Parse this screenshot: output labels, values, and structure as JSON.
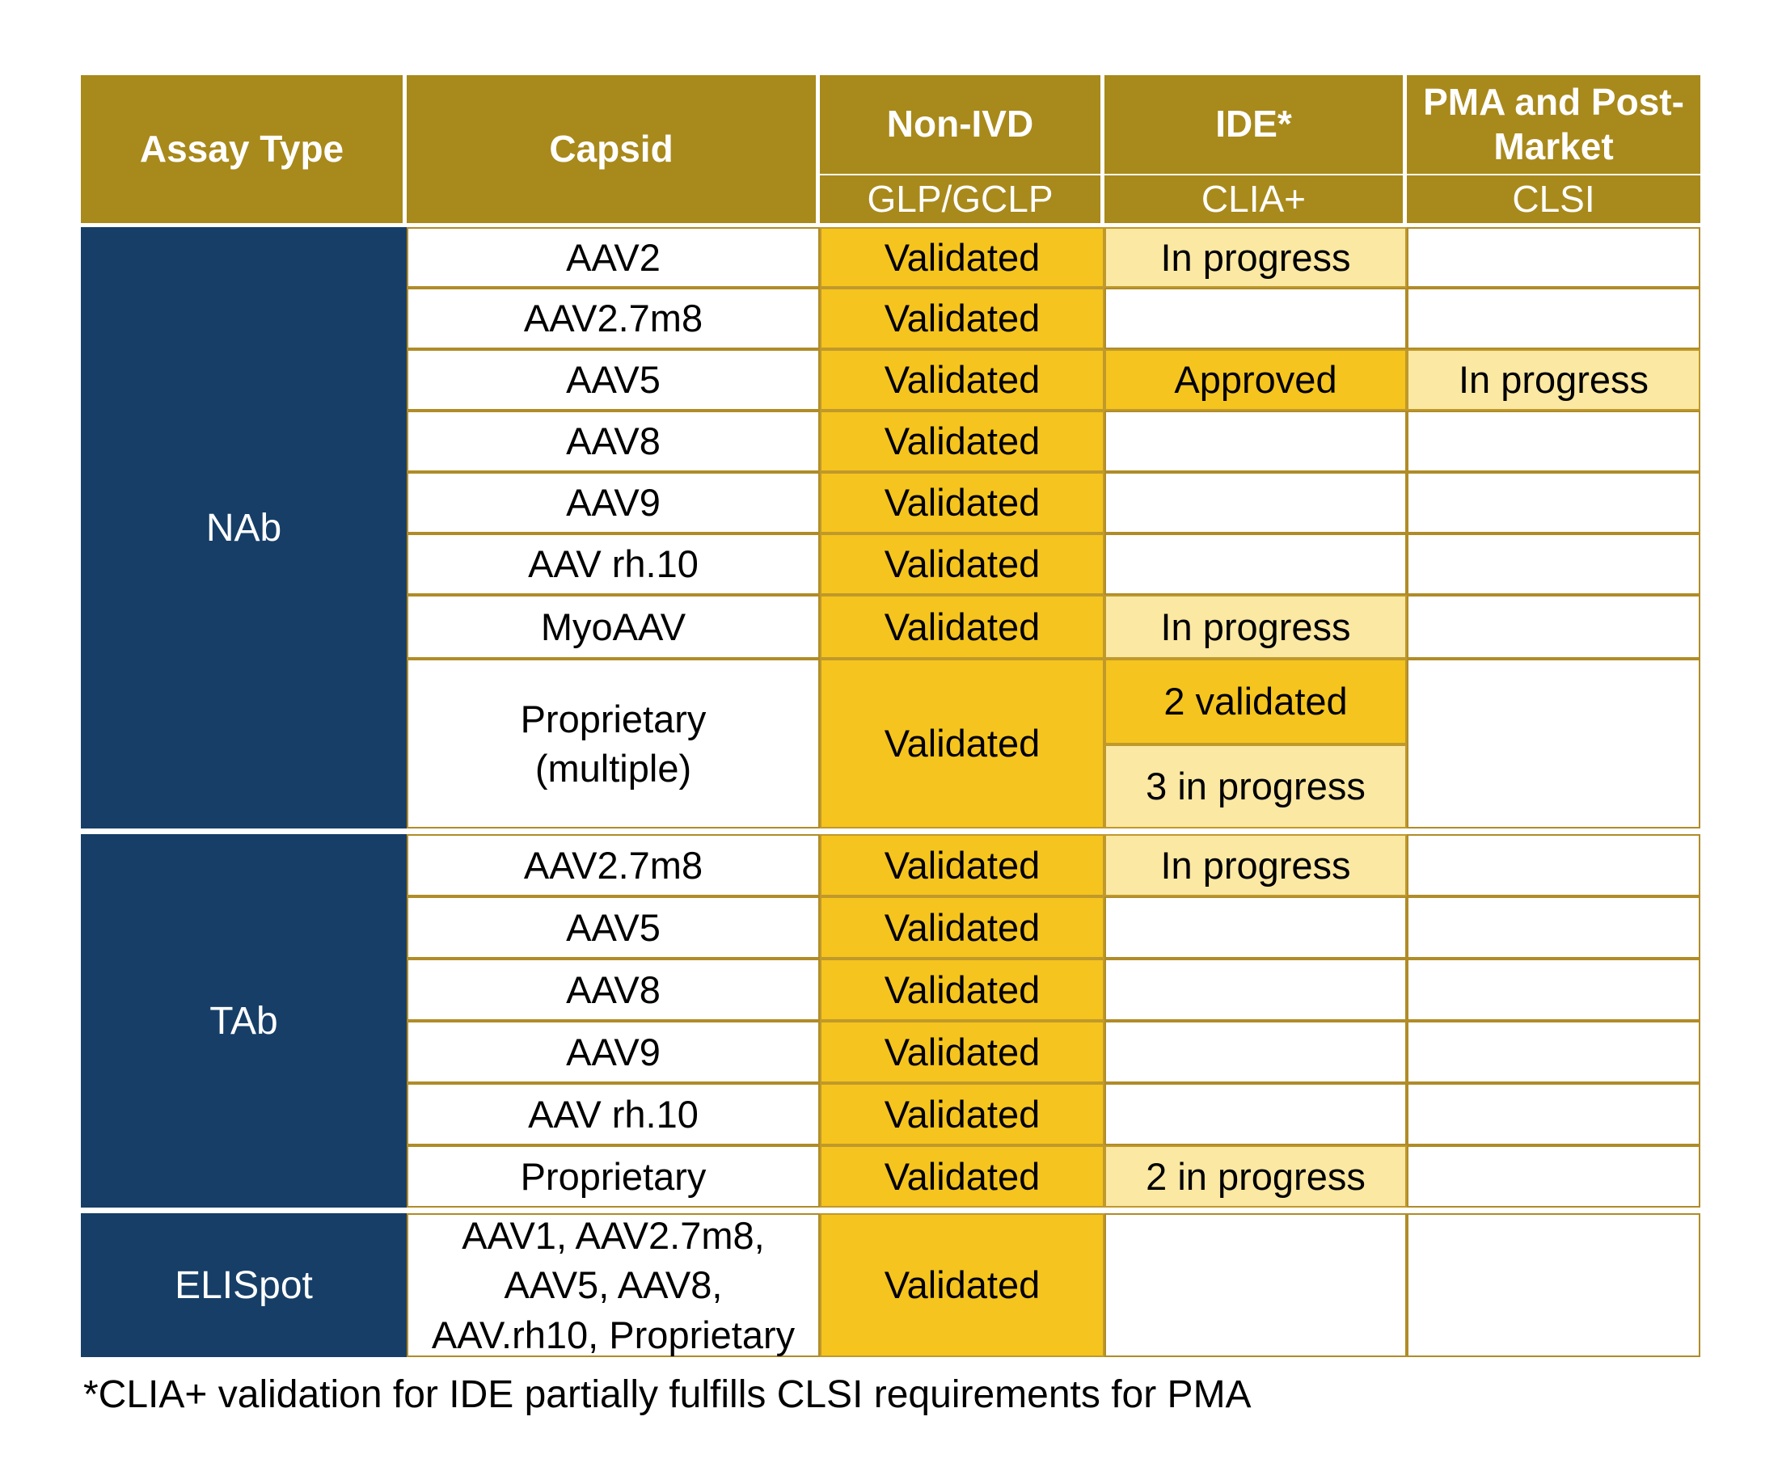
{
  "table": {
    "header": {
      "assay_type": "Assay Type",
      "capsid": "Capsid",
      "columns": [
        {
          "title": "Non-IVD",
          "subtitle": "GLP/GCLP"
        },
        {
          "title": "IDE*",
          "subtitle": "CLIA+"
        },
        {
          "title": "PMA and Post-Market",
          "subtitle": "CLSI"
        }
      ]
    },
    "sections": [
      {
        "assay": "NAb",
        "rows": [
          {
            "capsid": "AAV2",
            "non_ivd": "Validated",
            "ide": "In progress",
            "pma": ""
          },
          {
            "capsid": "AAV2.7m8",
            "non_ivd": "Validated",
            "ide": "",
            "pma": ""
          },
          {
            "capsid": "AAV5",
            "non_ivd": "Validated",
            "ide": "Approved",
            "pma": "In progress"
          },
          {
            "capsid": "AAV8",
            "non_ivd": "Validated",
            "ide": "",
            "pma": ""
          },
          {
            "capsid": "AAV9",
            "non_ivd": "Validated",
            "ide": "",
            "pma": ""
          },
          {
            "capsid": "AAV rh.10",
            "non_ivd": "Validated",
            "ide": "",
            "pma": ""
          },
          {
            "capsid": "MyoAAV",
            "non_ivd": "Validated",
            "ide": "In progress",
            "pma": ""
          },
          {
            "capsid": "Proprietary (multiple)",
            "capsid_lines": [
              "Proprietary",
              "(multiple)"
            ],
            "non_ivd": "Validated",
            "ide_split": [
              "2 validated",
              "3 in progress"
            ],
            "pma": ""
          }
        ]
      },
      {
        "assay": "TAb",
        "rows": [
          {
            "capsid": "AAV2.7m8",
            "non_ivd": "Validated",
            "ide": "In progress",
            "pma": ""
          },
          {
            "capsid": "AAV5",
            "non_ivd": "Validated",
            "ide": "",
            "pma": ""
          },
          {
            "capsid": "AAV8",
            "non_ivd": "Validated",
            "ide": "",
            "pma": ""
          },
          {
            "capsid": "AAV9",
            "non_ivd": "Validated",
            "ide": "",
            "pma": ""
          },
          {
            "capsid": "AAV rh.10",
            "non_ivd": "Validated",
            "ide": "",
            "pma": ""
          },
          {
            "capsid": "Proprietary",
            "non_ivd": "Validated",
            "ide": "2 in progress",
            "pma": ""
          }
        ]
      },
      {
        "assay": "ELISpot",
        "rows": [
          {
            "capsid": "AAV1, AAV2.7m8, AAV5, AAV8, AAV.rh10, Proprietary",
            "capsid_lines": [
              "AAV1, AAV2.7m8,",
              "AAV5, AAV8,",
              "AAV.rh10, Proprietary"
            ],
            "non_ivd": "Validated",
            "ide": "",
            "pma": ""
          }
        ]
      }
    ],
    "footnote": "*CLIA+ validation for IDE partially fulfills CLSI requirements for PMA"
  },
  "colors": {
    "header_gold": "#A8891B",
    "assay_navy": "#163E67",
    "validated_gold": "#F5C41E",
    "in_progress_yellow": "#FAE8A3",
    "grid_line_gold": "#B08C28",
    "header_text": "#FFFFFF",
    "body_text": "#000000"
  }
}
